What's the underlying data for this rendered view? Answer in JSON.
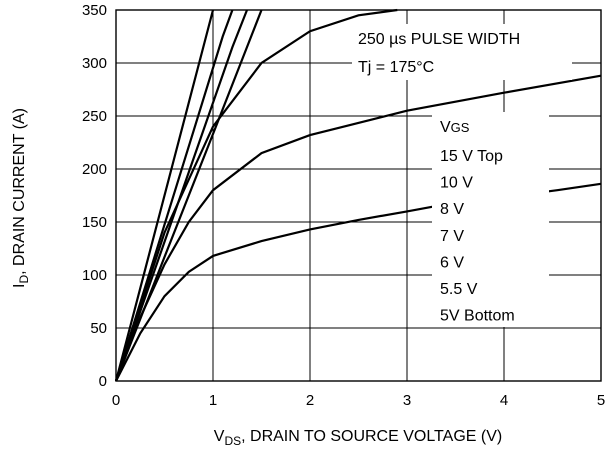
{
  "chart_data": {
    "type": "line",
    "xlabel_main": "V",
    "xlabel_sub": "DS",
    "xlabel_rest": ", DRAIN TO SOURCE VOLTAGE (V)",
    "ylabel_main": "I",
    "ylabel_sub": "D",
    "ylabel_rest": ", DRAIN CURRENT (A)",
    "xlim": [
      0,
      5
    ],
    "ylim": [
      0,
      350
    ],
    "x_ticks": [
      "0",
      "1",
      "2",
      "3",
      "4",
      "5"
    ],
    "y_ticks": [
      "0",
      "50",
      "100",
      "150",
      "200",
      "250",
      "300",
      "350"
    ],
    "grid": true,
    "annotations": {
      "pulse": "250 µs PULSE WIDTH",
      "tj": "Tj = 175°C"
    },
    "legend": {
      "title_main": "V",
      "title_sub": "GS",
      "entries": [
        "15 V Top",
        "10 V",
        "8 V",
        "7 V",
        "6 V",
        "5.5 V",
        "5V Bottom"
      ]
    },
    "series": [
      {
        "x": [
          0,
          0.3,
          0.6,
          0.9,
          1.0
        ],
        "y": [
          0,
          105,
          210,
          315,
          350
        ]
      },
      {
        "x": [
          0,
          0.4,
          0.8,
          1.1,
          1.2
        ],
        "y": [
          0,
          118,
          236,
          325,
          350
        ]
      },
      {
        "x": [
          0,
          0.4,
          0.8,
          1.2,
          1.35
        ],
        "y": [
          0,
          105,
          210,
          315,
          350
        ]
      },
      {
        "x": [
          0,
          0.5,
          1.0,
          1.5
        ],
        "y": [
          0,
          117,
          233,
          350
        ]
      },
      {
        "x": [
          0,
          0.5,
          1.0,
          1.5,
          2.0,
          2.5,
          2.9
        ],
        "y": [
          0,
          140,
          240,
          300,
          330,
          345,
          350
        ]
      },
      {
        "x": [
          0,
          0.25,
          0.5,
          0.75,
          1.0,
          1.5,
          2.0,
          3.0,
          4.0,
          5.0
        ],
        "y": [
          0,
          60,
          110,
          150,
          180,
          215,
          232,
          255,
          272,
          288
        ]
      },
      {
        "x": [
          0,
          0.25,
          0.5,
          0.75,
          1.0,
          1.5,
          2.0,
          2.5,
          3.0,
          3.3,
          4.55,
          5.0
        ],
        "y": [
          0,
          45,
          80,
          103,
          118,
          132,
          143,
          152,
          160,
          165,
          180,
          186
        ]
      }
    ]
  }
}
